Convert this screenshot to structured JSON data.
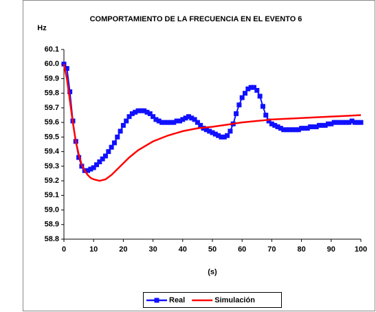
{
  "chart_data": {
    "type": "line",
    "title": "COMPORTAMIENTO DE LA FRECUENCIA EN EL EVENTO 6",
    "y_label": "Hz",
    "x_label": "(s)",
    "xlim": [
      0,
      100
    ],
    "xticks": [
      0,
      10,
      20,
      30,
      40,
      50,
      60,
      70,
      80,
      90,
      100
    ],
    "ylim": [
      58.8,
      60.1
    ],
    "yticks": [
      58.8,
      58.9,
      {
        "value": 59,
        "label": "59.0"
      },
      59.1,
      59.2,
      59.3,
      59.4,
      59.5,
      59.6,
      59.7,
      59.8,
      59.9,
      {
        "value": 60,
        "label": "60.0"
      },
      60.1
    ],
    "legend": "bottom",
    "series": [
      {
        "name": "Real",
        "color": "#1010ff",
        "markers": true,
        "x": [
          0,
          1,
          2,
          3,
          4,
          5,
          6,
          7,
          8,
          9,
          10,
          11,
          12,
          13,
          14,
          15,
          16,
          17,
          18,
          19,
          20,
          21,
          22,
          23,
          24,
          25,
          26,
          27,
          28,
          29,
          30,
          31,
          32,
          33,
          34,
          35,
          36,
          37,
          38,
          39,
          40,
          41,
          42,
          43,
          44,
          45,
          46,
          47,
          48,
          49,
          50,
          51,
          52,
          53,
          54,
          55,
          56,
          57,
          58,
          59,
          60,
          61,
          62,
          63,
          64,
          65,
          66,
          67,
          68,
          69,
          70,
          71,
          72,
          73,
          74,
          75,
          76,
          77,
          78,
          79,
          80,
          81,
          82,
          83,
          84,
          85,
          86,
          87,
          88,
          89,
          90,
          91,
          92,
          93,
          94,
          95,
          96,
          97,
          98,
          99,
          100
        ],
        "values": [
          60.0,
          59.97,
          59.81,
          59.61,
          59.47,
          59.36,
          59.3,
          59.27,
          59.27,
          59.28,
          59.29,
          59.31,
          59.33,
          59.35,
          59.37,
          59.4,
          59.43,
          59.46,
          59.5,
          59.54,
          59.58,
          59.61,
          59.64,
          59.66,
          59.67,
          59.68,
          59.68,
          59.68,
          59.67,
          59.66,
          59.64,
          59.62,
          59.61,
          59.6,
          59.6,
          59.6,
          59.6,
          59.6,
          59.61,
          59.61,
          59.62,
          59.63,
          59.64,
          59.63,
          59.62,
          59.6,
          59.58,
          59.56,
          59.55,
          59.54,
          59.53,
          59.52,
          59.51,
          59.5,
          59.5,
          59.51,
          59.54,
          59.59,
          59.66,
          59.72,
          59.77,
          59.8,
          59.83,
          59.84,
          59.84,
          59.82,
          59.78,
          59.71,
          59.65,
          59.61,
          59.59,
          59.58,
          59.57,
          59.56,
          59.55,
          59.55,
          59.55,
          59.55,
          59.55,
          59.55,
          59.56,
          59.56,
          59.56,
          59.57,
          59.57,
          59.57,
          59.58,
          59.58,
          59.58,
          59.59,
          59.59,
          59.6,
          59.6,
          59.6,
          59.6,
          59.6,
          59.6,
          59.61,
          59.6,
          59.6,
          59.6
        ]
      },
      {
        "name": "Simulación",
        "color": "#ff0000",
        "markers": false,
        "x": [
          0,
          1,
          2,
          3,
          4,
          5,
          6,
          7,
          8,
          9,
          10,
          12,
          14,
          16,
          18,
          20,
          22,
          25,
          30,
          35,
          40,
          45,
          50,
          55,
          60,
          65,
          70,
          80,
          90,
          100
        ],
        "values": [
          60.0,
          59.9,
          59.75,
          59.6,
          59.47,
          59.38,
          59.31,
          59.27,
          59.24,
          59.22,
          59.21,
          59.2,
          59.21,
          59.24,
          59.28,
          59.32,
          59.36,
          59.41,
          59.47,
          59.51,
          59.54,
          59.56,
          59.57,
          59.585,
          59.6,
          59.61,
          59.62,
          59.63,
          59.64,
          59.65
        ]
      }
    ]
  }
}
